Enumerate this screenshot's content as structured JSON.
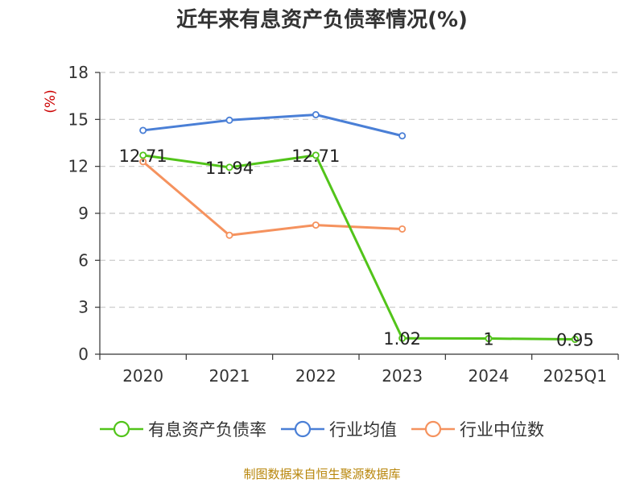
{
  "title": "近年来有息资产负债率情况(%)",
  "source": "制图数据来自恒生聚源数据库",
  "chart_data": {
    "type": "line",
    "title": "近年来有息资产负债率情况(%)",
    "ylabel": "(%)",
    "xlabel": "",
    "categories": [
      "2020",
      "2021",
      "2022",
      "2023",
      "2024",
      "2025Q1"
    ],
    "ylim": [
      0,
      18
    ],
    "yticks": [
      0,
      3,
      6,
      9,
      12,
      15,
      18
    ],
    "grid": true,
    "legend_position": "bottom",
    "series": [
      {
        "name": "有息资产负债率",
        "color": "#52c41a",
        "values": [
          12.71,
          11.94,
          12.71,
          1.02,
          1,
          0.95
        ],
        "labels": [
          "12.71",
          "11.94",
          "12.71",
          "1.02",
          "1",
          "0.95"
        ]
      },
      {
        "name": "行业均值",
        "color": "#4a7fd6",
        "values": [
          14.3,
          14.95,
          15.3,
          13.95,
          null,
          null
        ]
      },
      {
        "name": "行业中位数",
        "color": "#f5925e",
        "values": [
          12.3,
          7.6,
          8.25,
          8.0,
          null,
          null
        ]
      }
    ]
  }
}
